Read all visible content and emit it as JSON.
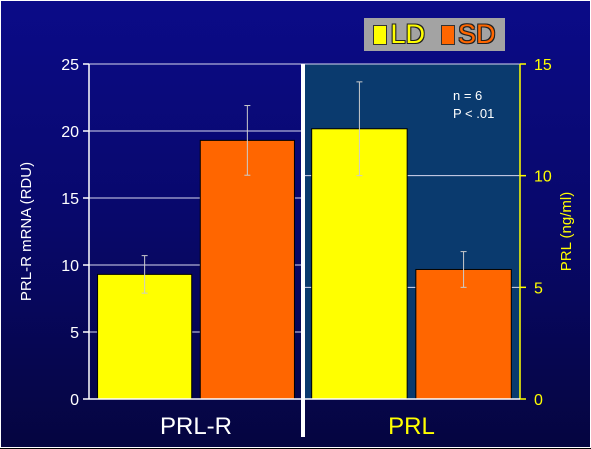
{
  "legend": {
    "items": [
      {
        "label": "LD",
        "color": "#ffff00"
      },
      {
        "label": "SD",
        "color": "#ff6600"
      }
    ]
  },
  "annotation": {
    "line1": "n = 6",
    "line2": "P < .01"
  },
  "chart_data": {
    "type": "bar",
    "grid": true,
    "legend_placement": "top-right",
    "panels": [
      {
        "category": "PRL-R",
        "axis": "left",
        "ylabel": "PRL-R mRNA (RDU)",
        "ylim": [
          0,
          25
        ],
        "yticks": [
          0,
          5,
          10,
          15,
          20,
          25
        ],
        "series": [
          {
            "name": "LD",
            "value": 9.3,
            "error": 1.4
          },
          {
            "name": "SD",
            "value": 19.3,
            "error": 2.6
          }
        ]
      },
      {
        "category": "PRL",
        "axis": "right",
        "ylabel": "PRL (ng/ml)",
        "ylim": [
          0,
          15
        ],
        "yticks": [
          0,
          5,
          10,
          15
        ],
        "series": [
          {
            "name": "LD",
            "value": 12.1,
            "error": 2.1
          },
          {
            "name": "SD",
            "value": 5.8,
            "error": 0.8
          }
        ]
      }
    ]
  }
}
